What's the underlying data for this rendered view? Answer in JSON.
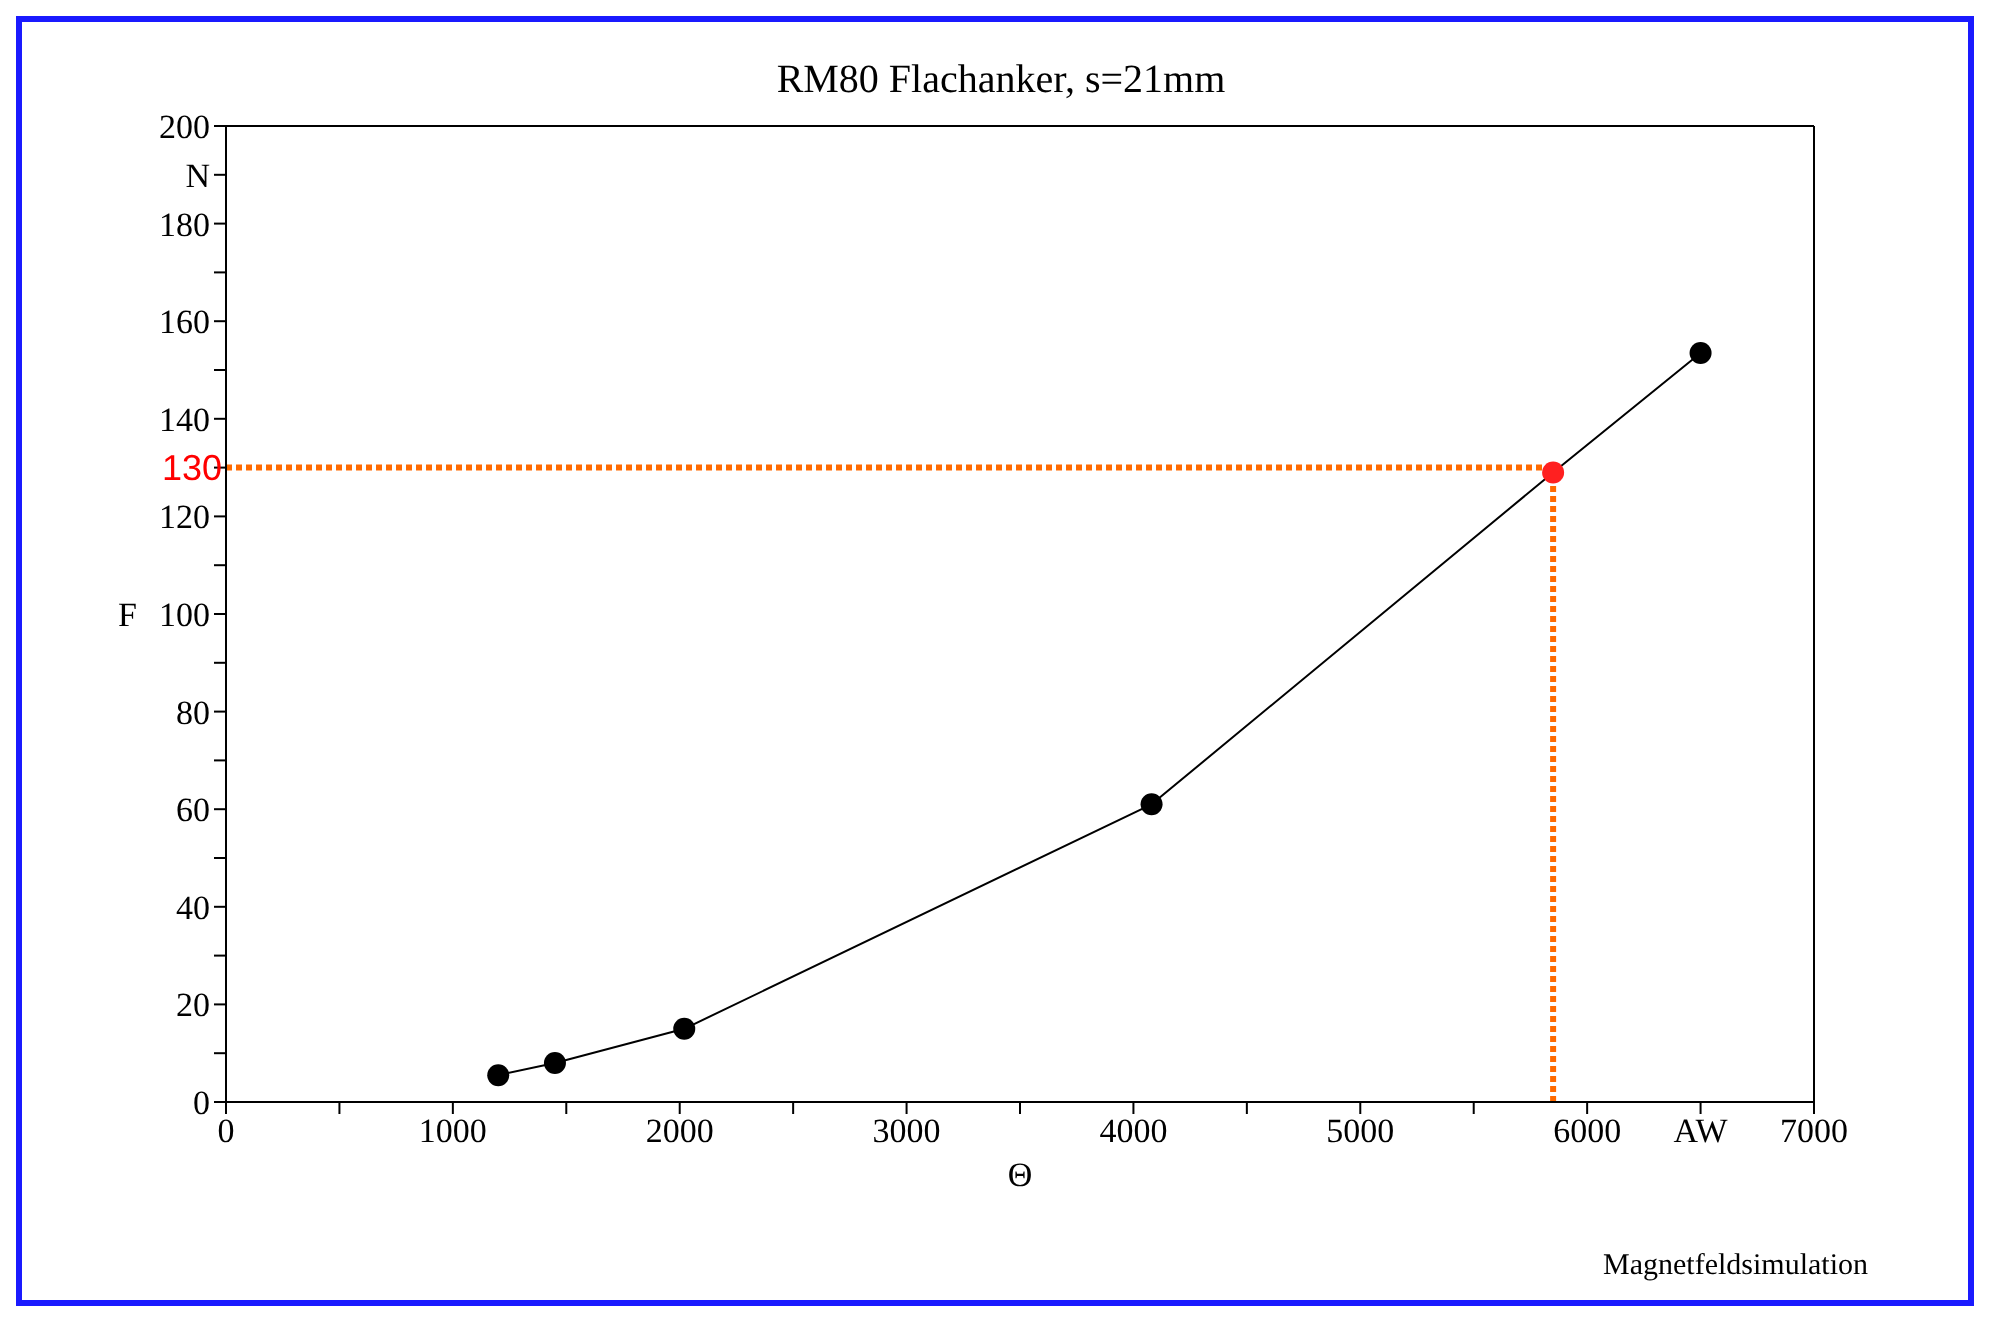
{
  "chart_data": {
    "type": "line",
    "title": "RM80 Flachanker, s=21mm",
    "xlabel": "Θ",
    "ylabel": "F",
    "x": [
      1200,
      1450,
      2020,
      4080,
      5850,
      6500
    ],
    "series": [
      {
        "color": "#000000",
        "values": [
          5.5,
          8,
          15,
          61,
          129,
          153.5
        ],
        "colors": [
          "#000000",
          "#000000",
          "#000000",
          "#000000",
          "#ff2020",
          "#000000"
        ]
      }
    ],
    "xlim": [
      0,
      7000
    ],
    "xticks": [
      0,
      {
        "value": 500,
        "label": null
      },
      1000,
      {
        "value": 1500,
        "label": null
      },
      2000,
      {
        "value": 2500,
        "label": null
      },
      3000,
      {
        "value": 3500,
        "label": null
      },
      4000,
      {
        "value": 4500,
        "label": null
      },
      5000,
      {
        "value": 5500,
        "label": null
      },
      6000,
      {
        "value": 6500,
        "label": "AW"
      },
      7000
    ],
    "ylim": [
      0,
      200
    ],
    "yticks": [
      0,
      {
        "value": 10,
        "label": null
      },
      20,
      {
        "value": 30,
        "label": null
      },
      40,
      {
        "value": 50,
        "label": null
      },
      60,
      {
        "value": 70,
        "label": null
      },
      80,
      {
        "value": 90,
        "label": null
      },
      100,
      {
        "value": 110,
        "label": null
      },
      120,
      {
        "value": 130,
        "label": null
      },
      140,
      {
        "value": 150,
        "label": null
      },
      160,
      {
        "value": 170,
        "label": null
      },
      180,
      {
        "value": 190,
        "label": "N"
      },
      200
    ],
    "ref_lines": [
      {
        "axis": "y",
        "value": 130,
        "label": "130",
        "color": "#ff6a00",
        "line_style": "dotted"
      },
      {
        "axis": "x",
        "value": 5850,
        "label": null,
        "color": "#ff6a00",
        "line_style": "dotted"
      }
    ],
    "marker": "circle",
    "line_style": "solid",
    "annotations": [
      "Magnetfeldsimulation"
    ]
  }
}
